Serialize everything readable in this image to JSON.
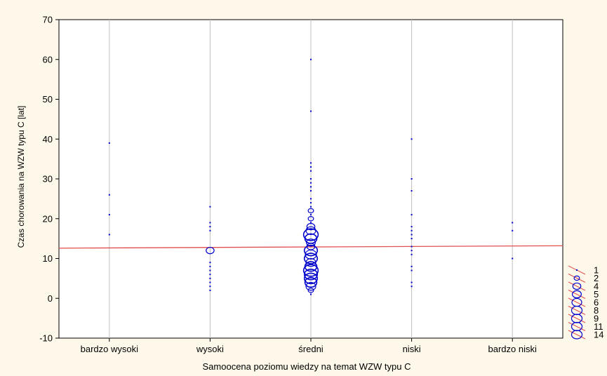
{
  "chart_data": {
    "type": "scatter",
    "title": "",
    "xlabel": "Samoocena poziomu wiedzy na temat WZW typu C",
    "ylabel": "Czas chorowania na WZW typu C [lat]",
    "categories": [
      "bardzo wysoki",
      "wysoki",
      "średni",
      "niski",
      "bardzo niski"
    ],
    "ylim": [
      -10,
      70
    ],
    "yticks": [
      -10,
      0,
      10,
      20,
      30,
      40,
      50,
      60,
      70
    ],
    "grid": "vertical",
    "colors": {
      "points": "#0000cc",
      "fit_line": "#e05050",
      "plot_bg": "#ffffff",
      "grid": "#c0c0c0"
    },
    "fit_line": {
      "y_start": 12.6,
      "y_end": 13.2
    },
    "legend": {
      "placement": "right",
      "title": "",
      "sizes": [
        "1",
        "2",
        "4",
        "5",
        "6",
        "8",
        "9",
        "11",
        "14"
      ]
    },
    "points": [
      {
        "category": "bardzo wysoki",
        "y": 39,
        "count": 1
      },
      {
        "category": "bardzo wysoki",
        "y": 26,
        "count": 1
      },
      {
        "category": "bardzo wysoki",
        "y": 21,
        "count": 1
      },
      {
        "category": "bardzo wysoki",
        "y": 16,
        "count": 1
      },
      {
        "category": "wysoki",
        "y": 23,
        "count": 1
      },
      {
        "category": "wysoki",
        "y": 19,
        "count": 1
      },
      {
        "category": "wysoki",
        "y": 18,
        "count": 1
      },
      {
        "category": "wysoki",
        "y": 17,
        "count": 1
      },
      {
        "category": "wysoki",
        "y": 12,
        "count": 4
      },
      {
        "category": "wysoki",
        "y": 9,
        "count": 1
      },
      {
        "category": "wysoki",
        "y": 8,
        "count": 1
      },
      {
        "category": "wysoki",
        "y": 7,
        "count": 1
      },
      {
        "category": "wysoki",
        "y": 6,
        "count": 1
      },
      {
        "category": "wysoki",
        "y": 5,
        "count": 1
      },
      {
        "category": "wysoki",
        "y": 4,
        "count": 1
      },
      {
        "category": "wysoki",
        "y": 3,
        "count": 1
      },
      {
        "category": "wysoki",
        "y": 2,
        "count": 1
      },
      {
        "category": "średni",
        "y": 60,
        "count": 1
      },
      {
        "category": "średni",
        "y": 47,
        "count": 1
      },
      {
        "category": "średni",
        "y": 34,
        "count": 1
      },
      {
        "category": "średni",
        "y": 33,
        "count": 1
      },
      {
        "category": "średni",
        "y": 32,
        "count": 1
      },
      {
        "category": "średni",
        "y": 30,
        "count": 1
      },
      {
        "category": "średni",
        "y": 29,
        "count": 1
      },
      {
        "category": "średni",
        "y": 28,
        "count": 1
      },
      {
        "category": "średni",
        "y": 27,
        "count": 1
      },
      {
        "category": "średni",
        "y": 25,
        "count": 1
      },
      {
        "category": "średni",
        "y": 24,
        "count": 1
      },
      {
        "category": "średni",
        "y": 23,
        "count": 1
      },
      {
        "category": "średni",
        "y": 22,
        "count": 2
      },
      {
        "category": "średni",
        "y": 21,
        "count": 1
      },
      {
        "category": "średni",
        "y": 20,
        "count": 2
      },
      {
        "category": "średni",
        "y": 19,
        "count": 1
      },
      {
        "category": "średni",
        "y": 18,
        "count": 4
      },
      {
        "category": "średni",
        "y": 17,
        "count": 6
      },
      {
        "category": "średni",
        "y": 16,
        "count": 14
      },
      {
        "category": "średni",
        "y": 15,
        "count": 9
      },
      {
        "category": "średni",
        "y": 14,
        "count": 5
      },
      {
        "category": "średni",
        "y": 13,
        "count": 4
      },
      {
        "category": "średni",
        "y": 12,
        "count": 11
      },
      {
        "category": "średni",
        "y": 11,
        "count": 8
      },
      {
        "category": "średni",
        "y": 10,
        "count": 11
      },
      {
        "category": "średni",
        "y": 9,
        "count": 6
      },
      {
        "category": "średni",
        "y": 8,
        "count": 9
      },
      {
        "category": "średni",
        "y": 7,
        "count": 14
      },
      {
        "category": "średni",
        "y": 6,
        "count": 11
      },
      {
        "category": "średni",
        "y": 5,
        "count": 11
      },
      {
        "category": "średni",
        "y": 4,
        "count": 9
      },
      {
        "category": "średni",
        "y": 3,
        "count": 6
      },
      {
        "category": "średni",
        "y": 2,
        "count": 2
      },
      {
        "category": "średni",
        "y": 1,
        "count": 1
      },
      {
        "category": "niski",
        "y": 40,
        "count": 1
      },
      {
        "category": "niski",
        "y": 30,
        "count": 1
      },
      {
        "category": "niski",
        "y": 27,
        "count": 1
      },
      {
        "category": "niski",
        "y": 21,
        "count": 1
      },
      {
        "category": "niski",
        "y": 18,
        "count": 1
      },
      {
        "category": "niski",
        "y": 17,
        "count": 1
      },
      {
        "category": "niski",
        "y": 16,
        "count": 1
      },
      {
        "category": "niski",
        "y": 15,
        "count": 1
      },
      {
        "category": "niski",
        "y": 13,
        "count": 1
      },
      {
        "category": "niski",
        "y": 12,
        "count": 1
      },
      {
        "category": "niski",
        "y": 11,
        "count": 1
      },
      {
        "category": "niski",
        "y": 8,
        "count": 1
      },
      {
        "category": "niski",
        "y": 7,
        "count": 1
      },
      {
        "category": "niski",
        "y": 4,
        "count": 1
      },
      {
        "category": "niski",
        "y": 3,
        "count": 1
      },
      {
        "category": "bardzo niski",
        "y": 19,
        "count": 1
      },
      {
        "category": "bardzo niski",
        "y": 17,
        "count": 1
      },
      {
        "category": "bardzo niski",
        "y": 10,
        "count": 1
      }
    ]
  }
}
